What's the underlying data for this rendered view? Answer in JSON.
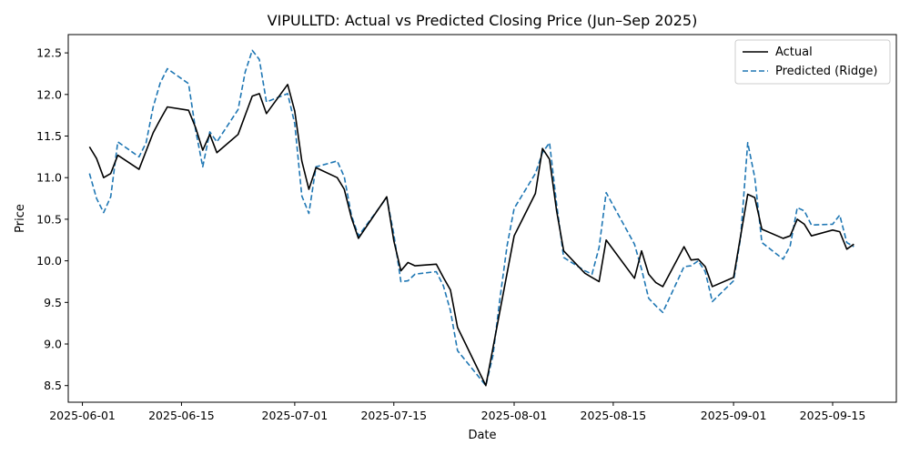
{
  "chart_data": {
    "type": "line",
    "title": "VIPULLTD: Actual vs Predicted Closing Price (Jun–Sep 2025)",
    "xlabel": "Date",
    "ylabel": "Price",
    "xlim": [
      "2025-05-30",
      "2025-09-24"
    ],
    "ylim": [
      8.3,
      12.72
    ],
    "x_ticks": [
      "2025-06-01",
      "2025-06-15",
      "2025-07-01",
      "2025-07-15",
      "2025-08-01",
      "2025-08-15",
      "2025-09-01",
      "2025-09-15"
    ],
    "y_ticks": [
      "8.5",
      "9.0",
      "9.5",
      "10.0",
      "10.5",
      "11.0",
      "11.5",
      "12.0",
      "12.5"
    ],
    "grid": false,
    "legend_position": "top-right",
    "x": [
      "2025-06-02",
      "2025-06-03",
      "2025-06-04",
      "2025-06-05",
      "2025-06-06",
      "2025-06-09",
      "2025-06-10",
      "2025-06-11",
      "2025-06-12",
      "2025-06-13",
      "2025-06-16",
      "2025-06-17",
      "2025-06-18",
      "2025-06-19",
      "2025-06-20",
      "2025-06-23",
      "2025-06-24",
      "2025-06-25",
      "2025-06-26",
      "2025-06-27",
      "2025-06-30",
      "2025-07-01",
      "2025-07-02",
      "2025-07-03",
      "2025-07-04",
      "2025-07-07",
      "2025-07-08",
      "2025-07-09",
      "2025-07-10",
      "2025-07-14",
      "2025-07-15",
      "2025-07-16",
      "2025-07-17",
      "2025-07-18",
      "2025-07-21",
      "2025-07-22",
      "2025-07-23",
      "2025-07-24",
      "2025-07-28",
      "2025-07-29",
      "2025-07-30",
      "2025-07-31",
      "2025-08-01",
      "2025-08-04",
      "2025-08-05",
      "2025-08-06",
      "2025-08-07",
      "2025-08-08",
      "2025-08-11",
      "2025-08-12",
      "2025-08-13",
      "2025-08-14",
      "2025-08-18",
      "2025-08-19",
      "2025-08-20",
      "2025-08-21",
      "2025-08-22",
      "2025-08-25",
      "2025-08-26",
      "2025-08-27",
      "2025-08-28",
      "2025-08-29",
      "2025-09-01",
      "2025-09-02",
      "2025-09-03",
      "2025-09-04",
      "2025-09-05",
      "2025-09-08",
      "2025-09-09",
      "2025-09-10",
      "2025-09-11",
      "2025-09-12",
      "2025-09-15",
      "2025-09-16",
      "2025-09-17",
      "2025-09-18"
    ],
    "series": [
      {
        "name": "Actual",
        "color": "#000000",
        "style": "solid",
        "values": [
          11.37,
          11.23,
          11.0,
          11.05,
          11.27,
          11.1,
          11.32,
          11.54,
          11.7,
          11.85,
          11.81,
          11.6,
          11.33,
          11.52,
          11.3,
          11.52,
          11.75,
          11.98,
          12.01,
          11.77,
          12.12,
          11.8,
          11.2,
          10.86,
          11.12,
          11.0,
          10.86,
          10.52,
          10.27,
          10.77,
          10.24,
          9.88,
          9.98,
          9.94,
          9.96,
          9.8,
          9.65,
          9.2,
          8.5,
          8.95,
          9.4,
          9.85,
          10.3,
          10.81,
          11.35,
          11.22,
          10.6,
          10.12,
          9.85,
          9.8,
          9.75,
          10.25,
          9.79,
          10.12,
          9.84,
          9.74,
          9.69,
          10.17,
          10.01,
          10.02,
          9.93,
          9.69,
          9.8,
          10.3,
          10.8,
          10.76,
          10.38,
          10.27,
          10.3,
          10.5,
          10.44,
          10.3,
          10.37,
          10.35,
          10.14,
          10.2
        ]
      },
      {
        "name": "Predicted (Ridge)",
        "color": "#1f77b4",
        "style": "dashed",
        "values": [
          11.05,
          10.75,
          10.58,
          10.77,
          11.43,
          11.25,
          11.42,
          11.85,
          12.14,
          12.31,
          12.13,
          11.57,
          11.13,
          11.55,
          11.43,
          11.82,
          12.27,
          12.53,
          12.42,
          11.91,
          12.01,
          11.65,
          10.78,
          10.57,
          11.13,
          11.2,
          11.01,
          10.55,
          10.3,
          10.76,
          10.32,
          9.75,
          9.76,
          9.84,
          9.87,
          9.7,
          9.4,
          8.92,
          8.5,
          8.86,
          9.55,
          10.18,
          10.63,
          11.05,
          11.3,
          11.42,
          10.68,
          10.04,
          9.88,
          9.84,
          10.16,
          10.82,
          10.2,
          9.9,
          9.55,
          9.46,
          9.38,
          9.93,
          9.94,
          10.0,
          9.87,
          9.51,
          9.76,
          10.28,
          11.42,
          11.0,
          10.22,
          10.02,
          10.18,
          10.64,
          10.6,
          10.43,
          10.44,
          10.55,
          10.22,
          10.17
        ]
      }
    ]
  }
}
